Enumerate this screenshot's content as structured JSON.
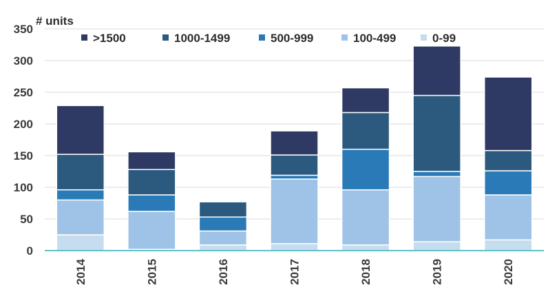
{
  "chart_data": {
    "type": "bar",
    "stacked": true,
    "ylabel": "# units",
    "xlabel": "",
    "ylim": [
      0,
      350
    ],
    "yticks": [
      0,
      50,
      100,
      150,
      200,
      250,
      300,
      350
    ],
    "categories": [
      "2014",
      "2015",
      "2016",
      "2017",
      "2018",
      "2019",
      "2020"
    ],
    "series": [
      {
        "name": "0-99",
        "color": "#c6dcef",
        "values": [
          25,
          2,
          9,
          11,
          9,
          14,
          17
        ]
      },
      {
        "name": "100-499",
        "color": "#9ec3e6",
        "values": [
          55,
          60,
          22,
          102,
          87,
          103,
          71
        ]
      },
      {
        "name": "500-999",
        "color": "#2a7ab8",
        "values": [
          16,
          26,
          22,
          6,
          64,
          8,
          38
        ]
      },
      {
        "name": "1000-1499",
        "color": "#2b5a7e",
        "values": [
          56,
          40,
          24,
          32,
          58,
          120,
          32
        ]
      },
      {
        "name": ">1500",
        "color": "#2e3a63",
        "values": [
          77,
          28,
          0,
          38,
          39,
          78,
          116
        ]
      }
    ],
    "legend": {
      "position": "top",
      "order": [
        ">1500",
        "1000-1499",
        "500-999",
        "100-499",
        "0-99"
      ]
    },
    "grid": {
      "horizontal": true,
      "vertical": false,
      "color": "#d9d9d9"
    },
    "axis_color": "#5bc0c8"
  }
}
